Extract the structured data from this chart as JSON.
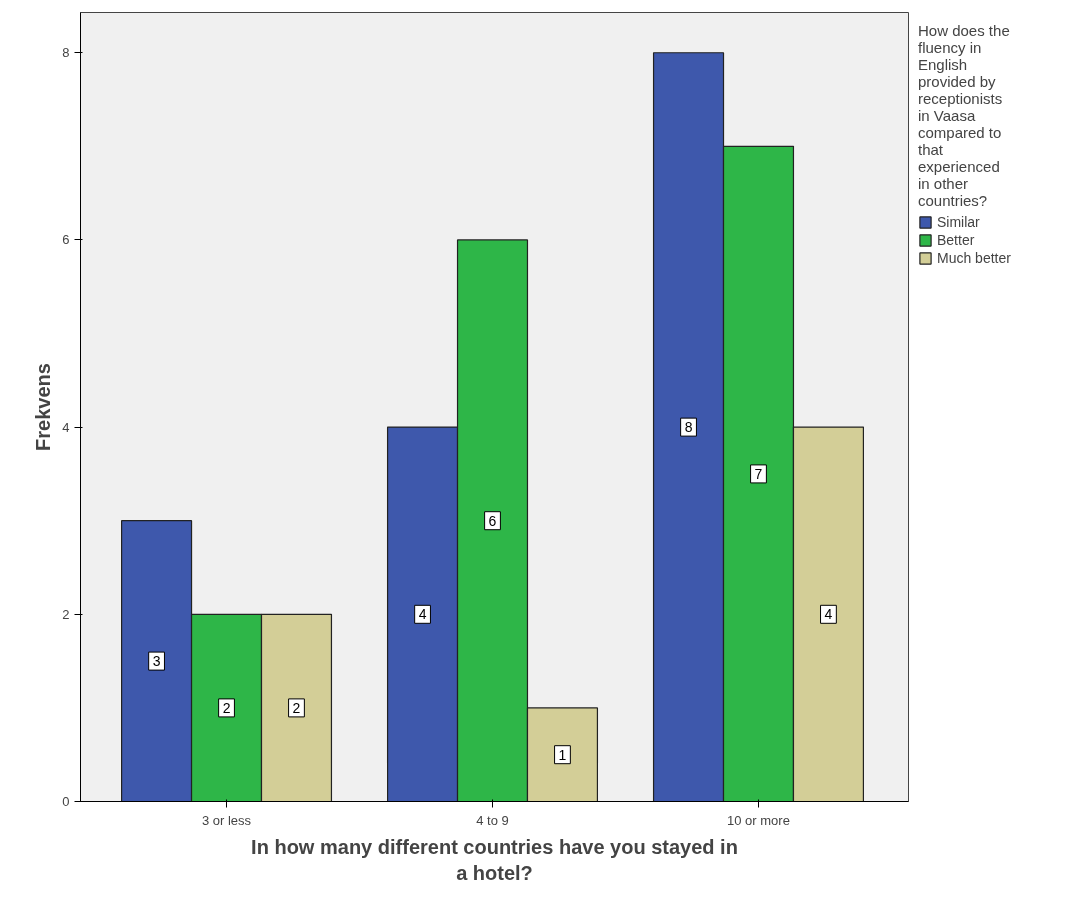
{
  "chart_data": {
    "type": "bar",
    "xlabel": "In how many different countries have you stayed in a hotel?",
    "ylabel": "Frekvens",
    "legend_title": "How does the fluency in English provided by receptionists in Vaasa compared to that experienced in other countries?",
    "categories": [
      "3 or less",
      "4 to 9",
      "10 or more"
    ],
    "series": [
      {
        "name": "Similar",
        "color": "#3e58ac",
        "values": [
          3,
          4,
          8
        ]
      },
      {
        "name": "Better",
        "color": "#2eb648",
        "values": [
          2,
          6,
          7
        ]
      },
      {
        "name": "Much better",
        "color": "#d3ce97",
        "values": [
          2,
          1,
          4
        ]
      }
    ],
    "ylim": [
      0,
      8.43
    ],
    "yticks": [
      0,
      2,
      4,
      6,
      8
    ],
    "grid": false,
    "legend": "right",
    "data_labels": true
  }
}
